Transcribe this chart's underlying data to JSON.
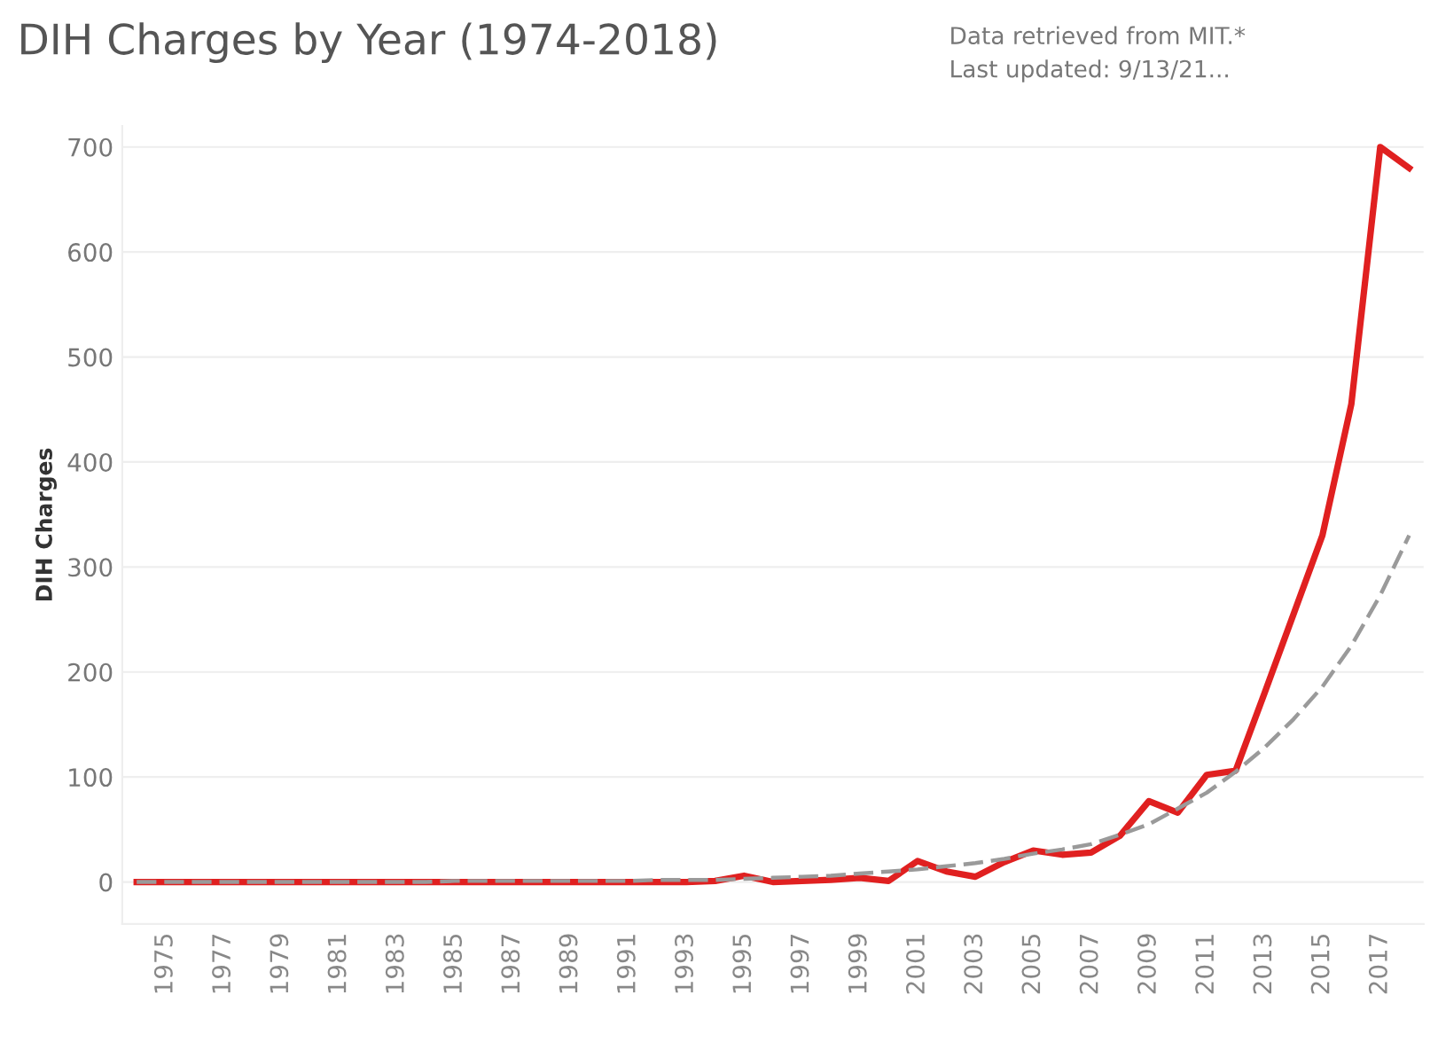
{
  "chart_data": {
    "type": "line",
    "title": "DIH Charges by Year (1974-2018)",
    "ylabel": "DIH Charges",
    "annotations": [
      "Data retrieved from MIT.*",
      "Last updated: 9/13/21..."
    ],
    "x": [
      1974,
      1975,
      1976,
      1977,
      1978,
      1979,
      1980,
      1981,
      1982,
      1983,
      1984,
      1985,
      1986,
      1987,
      1988,
      1989,
      1990,
      1991,
      1992,
      1993,
      1994,
      1995,
      1996,
      1997,
      1998,
      1999,
      2000,
      2001,
      2002,
      2003,
      2004,
      2005,
      2006,
      2007,
      2008,
      2009,
      2010,
      2011,
      2012,
      2013,
      2014,
      2015,
      2016,
      2017,
      2018
    ],
    "series": [
      {
        "color": "#e02020",
        "line_style": "solid",
        "values": [
          0,
          0,
          0,
          0,
          0,
          0,
          0,
          0,
          0,
          0,
          0,
          0,
          0,
          0,
          0,
          0,
          0,
          0,
          0,
          0,
          1,
          6,
          0,
          1,
          2,
          4,
          1,
          20,
          10,
          5,
          19,
          30,
          26,
          28,
          44,
          77,
          66,
          102,
          106,
          180,
          255,
          330,
          455,
          700,
          680
        ]
      },
      {
        "color": "#9a9a9a",
        "line_style": "dashed",
        "values": [
          0,
          0,
          0,
          0,
          0,
          0,
          0,
          0,
          0,
          0,
          0,
          1,
          1,
          1,
          1,
          1,
          1,
          1,
          2,
          2,
          2,
          3,
          4,
          5,
          6,
          8,
          10,
          12,
          15,
          18,
          22,
          27,
          31,
          36,
          45,
          55,
          70,
          85,
          105,
          128,
          155,
          186,
          225,
          273,
          330
        ]
      }
    ],
    "xlim": [
      1973.5,
      2018.5
    ],
    "xticks": [
      1975,
      1977,
      1979,
      1981,
      1983,
      1985,
      1987,
      1989,
      1991,
      1993,
      1995,
      1997,
      1999,
      2001,
      2003,
      2005,
      2007,
      2009,
      2011,
      2013,
      2015,
      2017
    ],
    "ylim": [
      -40,
      720
    ],
    "yticks": [
      0,
      100,
      200,
      300,
      400,
      500,
      600,
      700
    ],
    "grid": "y",
    "legend": false
  }
}
